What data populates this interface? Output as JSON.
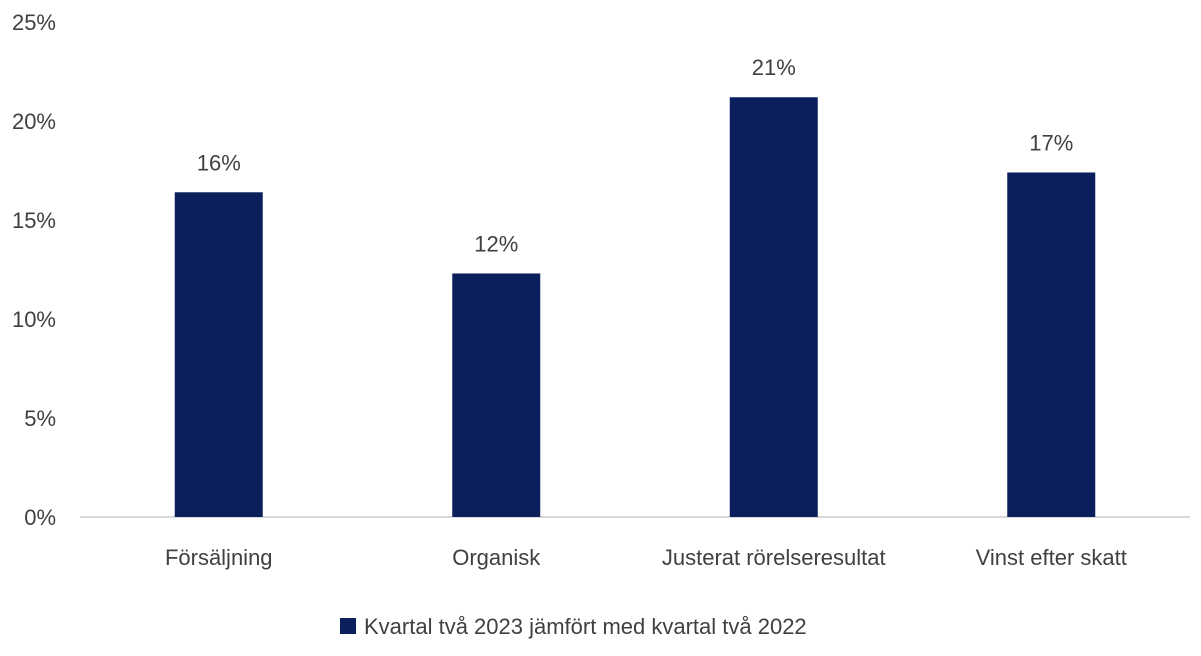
{
  "chart_data": {
    "type": "bar",
    "categories": [
      "Försäljning",
      "Organisk",
      "Justerat rörelseresultat",
      "Vinst efter skatt"
    ],
    "series": [
      {
        "name": "Kvartal två 2023 jämfört med kvartal två 2022",
        "values": [
          16.4,
          12.3,
          21.2,
          17.4
        ],
        "data_labels": [
          "16%",
          "12%",
          "21%",
          "17%"
        ]
      }
    ],
    "y_ticks": [
      0,
      5,
      10,
      15,
      20,
      25
    ],
    "y_tick_labels": [
      "0%",
      "5%",
      "10%",
      "15%",
      "20%",
      "25%"
    ],
    "ylim": [
      0,
      25
    ],
    "grid": false,
    "legend_position": "bottom-center",
    "colors": {
      "bar": "#0b1f5c",
      "axis": "#d9d9d9",
      "text": "#404040"
    }
  }
}
